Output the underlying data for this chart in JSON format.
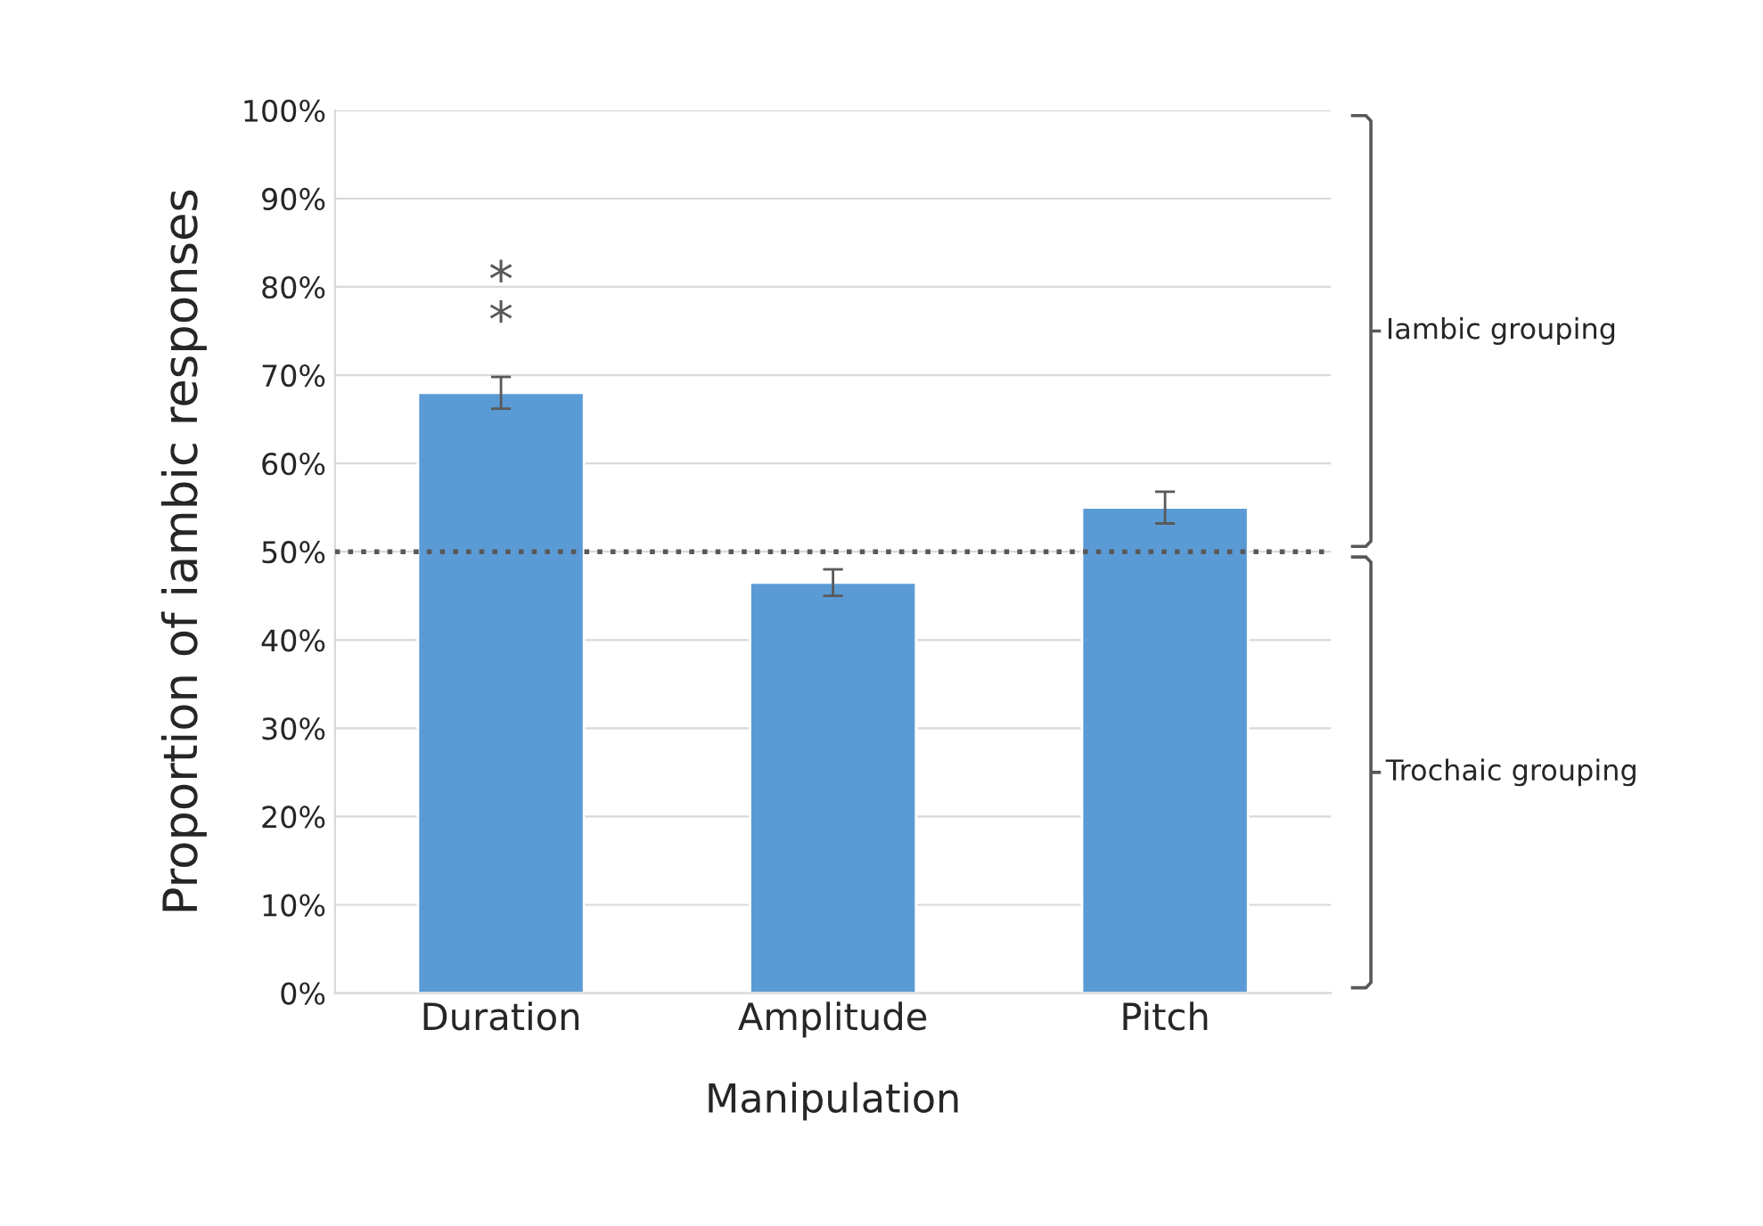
{
  "chart_data": {
    "type": "bar",
    "xlabel": "Manipulation",
    "ylabel": "Proportion of iambic responses",
    "categories": [
      "Duration",
      "Amplitude",
      "Pitch"
    ],
    "values": [
      68,
      46.5,
      55
    ],
    "errors": [
      1.8,
      1.5,
      1.8
    ],
    "color": "#5b9bd5",
    "ylim": [
      0,
      100
    ],
    "yticks": [
      {
        "value": 0,
        "label": "0%"
      },
      {
        "value": 10,
        "label": "10%"
      },
      {
        "value": 20,
        "label": "20%"
      },
      {
        "value": 30,
        "label": "30%"
      },
      {
        "value": 40,
        "label": "40%"
      },
      {
        "value": 50,
        "label": "50%"
      },
      {
        "value": 60,
        "label": "60%"
      },
      {
        "value": 70,
        "label": "70%"
      },
      {
        "value": 80,
        "label": "80%"
      },
      {
        "value": 90,
        "label": "90%"
      },
      {
        "value": 100,
        "label": "100%"
      }
    ],
    "grid": "y",
    "ref_lines": [
      {
        "axis": "y",
        "value": 50,
        "color": "#595959",
        "line_style": "dotted"
      }
    ],
    "annotations": [
      "*\n*",
      "Iambic grouping",
      "Trochaic grouping"
    ]
  }
}
